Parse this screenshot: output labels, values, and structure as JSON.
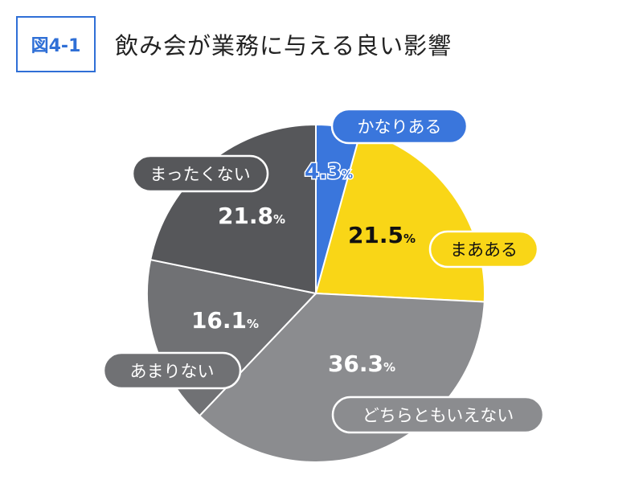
{
  "header": {
    "figure_label": "図4-1",
    "title": "飲み会が業務に与える良い影響"
  },
  "chart_data": {
    "type": "pie",
    "title": "飲み会が業務に与える良い影響",
    "categories": [
      "かなりある",
      "まあある",
      "どちらともいえない",
      "あまりない",
      "まったくない"
    ],
    "values": [
      4.3,
      21.5,
      36.3,
      16.1,
      21.8
    ],
    "value_labels": [
      "4.3",
      "21.5",
      "36.3",
      "16.1",
      "21.8"
    ],
    "unit": "%",
    "colors": [
      "#3a76dc",
      "#f9d617",
      "#8b8c8f",
      "#707174",
      "#56575a"
    ],
    "label_text_colors": [
      "#ffffff",
      "#111111",
      "#ffffff",
      "#ffffff",
      "#ffffff"
    ],
    "label_pill_fill": [
      "#3a76dc",
      "#f9d617",
      "#8b8c8f",
      "#707174",
      "#56575a"
    ],
    "label_pill_text": [
      "#ffffff",
      "#111111",
      "#ffffff",
      "#ffffff",
      "#ffffff"
    ]
  }
}
